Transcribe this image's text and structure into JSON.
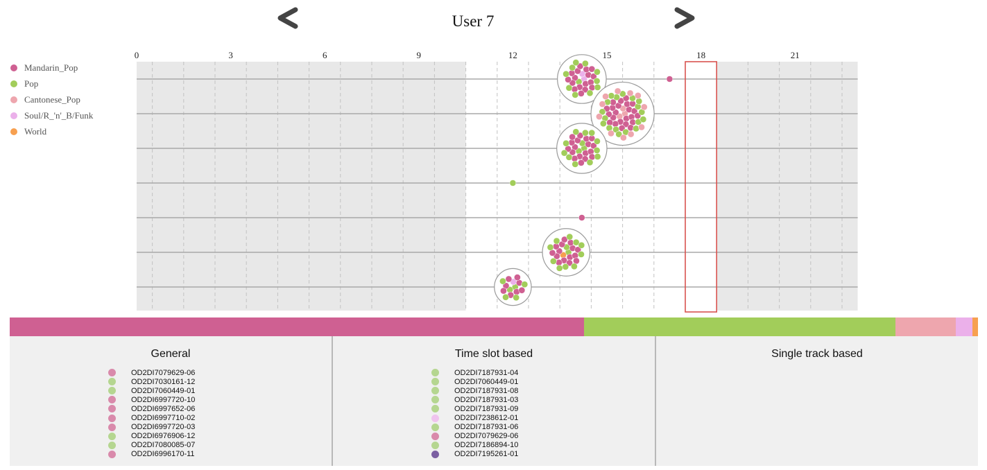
{
  "header": {
    "title": "User 7",
    "prev_icon": "chevron-left-icon",
    "next_icon": "chevron-right-icon"
  },
  "colors": {
    "Mandarin_Pop": "#cf6092",
    "Pop": "#a2cd5a",
    "Cantonese_Pop": "#eea6ae",
    "Soul/R_'n'_B/Funk": "#ebb0ea",
    "World": "#f7a050",
    "Other": "#7b5fa1"
  },
  "legend": [
    {
      "label": "Mandarin_Pop",
      "color": "#cf6092"
    },
    {
      "label": "Pop",
      "color": "#a2cd5a"
    },
    {
      "label": "Cantonese_Pop",
      "color": "#eea6ae"
    },
    {
      "label": "Soul/R_'n'_B/Funk",
      "color": "#ebb0ea"
    },
    {
      "label": "World",
      "color": "#f7a050"
    }
  ],
  "chart_data": {
    "type": "scatter",
    "title": "User 7",
    "xlabel": "",
    "ylabel": "",
    "x_ticks": [
      0,
      3,
      6,
      9,
      12,
      15,
      18,
      21
    ],
    "xlim": [
      0,
      23
    ],
    "highlight_hour": 18,
    "highlight_range": [
      17.5,
      18.5
    ],
    "gray_ranges": [
      [
        0,
        10.5
      ],
      [
        18.5,
        23
      ]
    ],
    "grid": "dashed vertical every hour",
    "rows": [
      {
        "clusters": [
          {
            "hour": 14.2,
            "tracks": 30,
            "mix": {
              "Mandarin_Pop": 17,
              "Pop": 11,
              "Soul/R_'n'_B/Funk": 2
            }
          },
          {
            "hour": 17.0,
            "tracks": 1,
            "mix": {
              "Mandarin_Pop": 1
            }
          }
        ]
      },
      {
        "clusters": [
          {
            "hour": 15.5,
            "tracks": 55,
            "mix": {
              "Mandarin_Pop": 23,
              "Pop": 18,
              "Cantonese_Pop": 14
            }
          }
        ]
      },
      {
        "clusters": [
          {
            "hour": 14.2,
            "tracks": 32,
            "mix": {
              "Mandarin_Pop": 18,
              "Pop": 14
            }
          }
        ]
      },
      {
        "clusters": [
          {
            "hour": 12.0,
            "tracks": 1,
            "mix": {
              "Pop": 1
            }
          }
        ]
      },
      {
        "clusters": [
          {
            "hour": 14.2,
            "tracks": 1,
            "mix": {
              "Mandarin_Pop": 1
            }
          }
        ]
      },
      {
        "clusters": [
          {
            "hour": 13.7,
            "tracks": 28,
            "mix": {
              "Mandarin_Pop": 15,
              "Pop": 12,
              "World": 1
            }
          }
        ]
      },
      {
        "clusters": [
          {
            "hour": 12.0,
            "tracks": 15,
            "mix": {
              "Mandarin_Pop": 8,
              "Pop": 6,
              "Soul/R_'n'_B/Funk": 1
            }
          }
        ]
      }
    ]
  },
  "genre_distribution": [
    {
      "genre": "Mandarin_Pop",
      "fraction": 0.593,
      "color": "#cf6092"
    },
    {
      "genre": "Pop",
      "fraction": 0.322,
      "color": "#a2cd5a"
    },
    {
      "genre": "Cantonese_Pop",
      "fraction": 0.062,
      "color": "#eea6ae"
    },
    {
      "genre": "Soul/R_'n'_B/Funk",
      "fraction": 0.017,
      "color": "#ebb0ea"
    },
    {
      "genre": "World",
      "fraction": 0.006,
      "color": "#f7a050"
    }
  ],
  "panels": {
    "general": {
      "title": "General",
      "tracks": [
        {
          "id": "OD2DI7079629-06",
          "color": "#d98aab"
        },
        {
          "id": "OD2DI7030161-12",
          "color": "#b5d690"
        },
        {
          "id": "OD2DI7060449-01",
          "color": "#b5d690"
        },
        {
          "id": "OD2DI6997720-10",
          "color": "#d98aab"
        },
        {
          "id": "OD2DI6997652-06",
          "color": "#d98aab"
        },
        {
          "id": "OD2DI6997710-02",
          "color": "#d98aab"
        },
        {
          "id": "OD2DI6997720-03",
          "color": "#d98aab"
        },
        {
          "id": "OD2DI6976906-12",
          "color": "#b5d690"
        },
        {
          "id": "OD2DI7080085-07",
          "color": "#b5d690"
        },
        {
          "id": "OD2DI6996170-11",
          "color": "#d98aab"
        }
      ]
    },
    "time_slot": {
      "title": "Time slot based",
      "tracks": [
        {
          "id": "OD2DI7187931-04",
          "color": "#b5d690"
        },
        {
          "id": "OD2DI7060449-01",
          "color": "#b5d690"
        },
        {
          "id": "OD2DI7187931-08",
          "color": "#b5d690"
        },
        {
          "id": "OD2DI7187931-03",
          "color": "#b5d690"
        },
        {
          "id": "OD2DI7187931-09",
          "color": "#b5d690"
        },
        {
          "id": "OD2DI7238612-01",
          "color": "#efc3ee"
        },
        {
          "id": "OD2DI7187931-06",
          "color": "#b5d690"
        },
        {
          "id": "OD2DI7079629-06",
          "color": "#d98aab"
        },
        {
          "id": "OD2DI7186894-10",
          "color": "#b5d690"
        },
        {
          "id": "OD2DI7195261-01",
          "color": "#7b5fa1"
        }
      ]
    },
    "single_track": {
      "title": "Single track based",
      "tracks": []
    }
  }
}
